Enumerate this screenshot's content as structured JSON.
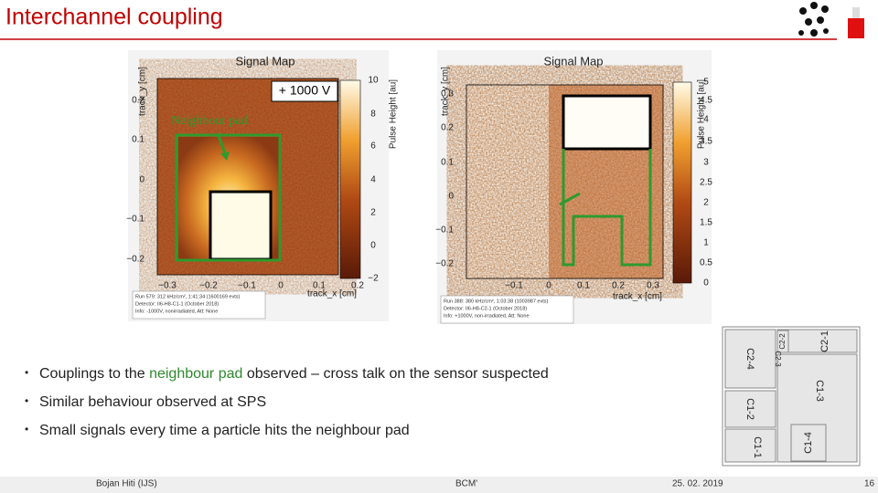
{
  "header": {
    "title": "Interchannel coupling"
  },
  "plots": [
    {
      "title": "Signal Map",
      "y_label": "track_y [cm]",
      "x_label": "track_x [cm]",
      "colorbar_label": "Pulse Height [au]",
      "yticks": [
        "0.2",
        "0.1",
        "0",
        "−0.1",
        "−0.2"
      ],
      "xticks": [
        "−0.3",
        "−0.2",
        "−0.1",
        "0",
        "0.1",
        "0.2"
      ],
      "cticks": [
        "10",
        "8",
        "6",
        "4",
        "2",
        "0",
        "−2"
      ],
      "stats": [
        "Run 579: 312 kHz/cm², 1:41:34 (1600169 evts)",
        "Detector: II6-H8-C1-1 (October 2018)",
        "Info: -1000V, nonirradiated, Att: None"
      ]
    },
    {
      "title": "Signal Map",
      "y_label": "track_y [cm]",
      "x_label": "track_x [cm]",
      "colorbar_label": "Pulse Height [au]",
      "yticks": [
        "0.3",
        "0.2",
        "0.1",
        "0",
        "−0.1",
        "−0.2"
      ],
      "xticks": [
        "−0.1",
        "0",
        "0.1",
        "0.2",
        "0.3"
      ],
      "cticks": [
        "5",
        "4.5",
        "4",
        "3.5",
        "3",
        "2.5",
        "2",
        "1.5",
        "1",
        "0.5",
        "0"
      ],
      "stats": [
        "Run 388: 380 kHz/cm², 1:03:38 (1003987 evts)",
        "Detector: II6-H8-C2-1 (October 2018)",
        "Info: +1000V, non-irradiated, Att: None"
      ]
    }
  ],
  "annotations": {
    "voltage": "+ 1000 V",
    "neighbour": "Neighbour pad"
  },
  "bullets": [
    [
      "Couplings to the ",
      "neighbour pad",
      " observed – cross talk on the sensor suspected"
    ],
    [
      "Similar behaviour observed at SPS"
    ],
    [
      "Small signals every time a particle hits the neighbour pad"
    ]
  ],
  "pads": [
    "C2-1",
    "C2-2",
    "C2-3",
    "C2-4",
    "C1-3",
    "C1-2",
    "C1-1",
    "C1-4"
  ],
  "footer": {
    "author": "Bojan Hiti (IJS)",
    "event": "BCM'",
    "date": "25. 02. 2019",
    "page": "16"
  }
}
